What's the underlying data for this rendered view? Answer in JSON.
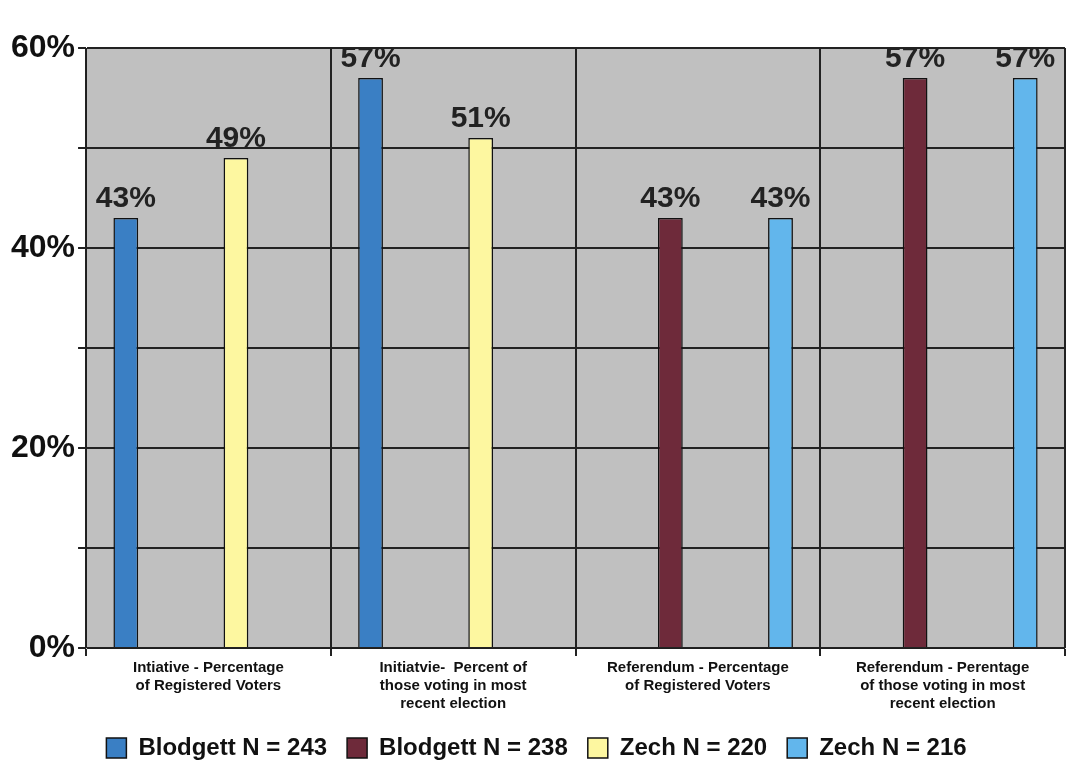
{
  "chart_data": {
    "type": "bar",
    "categories": [
      "Intiative - Percentage of Registered Voters",
      "Initiatvie-  Percent of those voting in most recent election",
      "Referendum - Percentage of Registered Voters",
      "Referendum - Perentage of those voting in most recent election"
    ],
    "series": [
      {
        "name": "Blodgett N = 243",
        "color": "#3a7fc4",
        "values": [
          43,
          57,
          null,
          null
        ],
        "value_labels": [
          "43%",
          "57%",
          null,
          null
        ]
      },
      {
        "name": "Blodgett N = 238",
        "color": "#6e2a3a",
        "values": [
          null,
          null,
          43,
          57
        ],
        "value_labels": [
          null,
          null,
          "43%",
          "57%"
        ]
      },
      {
        "name": "Zech N = 220",
        "color": "#fdf7a0",
        "values": [
          49,
          51,
          null,
          null
        ],
        "value_labels": [
          "49%",
          "51%",
          null,
          null
        ]
      },
      {
        "name": "Zech N = 216",
        "color": "#62b6ec",
        "values": [
          null,
          null,
          43,
          57
        ],
        "value_labels": [
          null,
          null,
          "43%",
          "57%"
        ]
      }
    ],
    "ylim": [
      0,
      60
    ],
    "yticks": [
      {
        "value": 0,
        "label": "0%"
      },
      {
        "value": 10,
        "label": null
      },
      {
        "value": 20,
        "label": "20%"
      },
      {
        "value": 30,
        "label": null
      },
      {
        "value": 40,
        "label": "40%"
      },
      {
        "value": 50,
        "label": null
      },
      {
        "value": 60,
        "label": "60%"
      }
    ],
    "grid": true,
    "legend": "bottom"
  }
}
